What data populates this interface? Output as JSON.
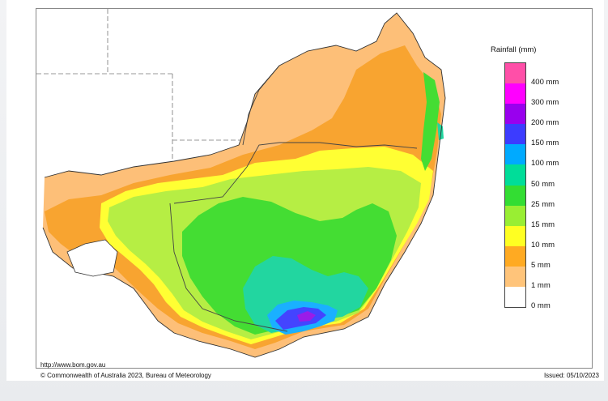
{
  "map": {
    "source_url": "http://www.bom.gov.au",
    "copyright": "© Commonwealth of Australia 2023, Bureau of Meteorology",
    "issued": "Issued: 05/10/2023"
  },
  "legend": {
    "title": "Rainfall (mm)",
    "items": [
      {
        "label": "400 mm",
        "color": "#ff4fa8"
      },
      {
        "label": "300 mm",
        "color": "#ff00ff"
      },
      {
        "label": "200 mm",
        "color": "#9900ee"
      },
      {
        "label": "150 mm",
        "color": "#3c3cff"
      },
      {
        "label": "100 mm",
        "color": "#00aaff"
      },
      {
        "label": "50 mm",
        "color": "#00dd99"
      },
      {
        "label": "25 mm",
        "color": "#33dd33"
      },
      {
        "label": "15 mm",
        "color": "#99ee33"
      },
      {
        "label": "10 mm",
        "color": "#ffff22"
      },
      {
        "label": "5 mm",
        "color": "#ffaa22"
      },
      {
        "label": "1 mm",
        "color": "#ffc47a"
      },
      {
        "label": "0 mm",
        "color": "#ffffff"
      }
    ]
  },
  "colors": {
    "no_rain": "#ffffff",
    "rain_1": "#fdbf78",
    "rain_5": "#f8a430",
    "rain_10": "#ffff33",
    "rain_15": "#b6ee44",
    "rain_25": "#44dd33",
    "rain_50": "#22d6a0",
    "rain_100": "#1ab0ff",
    "rain_150": "#4444ff",
    "rain_200": "#9a1ce8",
    "border": "#444444"
  }
}
